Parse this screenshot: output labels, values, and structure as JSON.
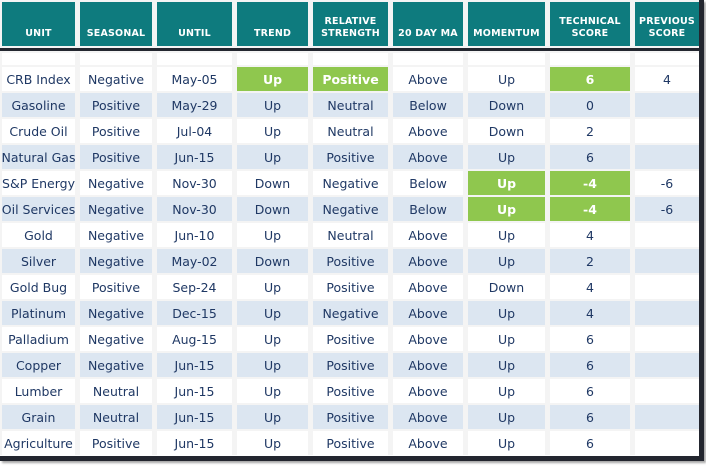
{
  "colors": {
    "header_bg": "#0E7B7E",
    "highlight_green": "#8FC74E",
    "row_alt": "#DCE6F1",
    "text": "#1F3864",
    "header_text": "#FFFFFF",
    "border_dark": "#23262F"
  },
  "table": {
    "columns": [
      {
        "key": "unit",
        "label": "UNIT"
      },
      {
        "key": "seasonal",
        "label": "SEASONAL"
      },
      {
        "key": "until",
        "label": "UNTIL"
      },
      {
        "key": "trend",
        "label": "TREND"
      },
      {
        "key": "relative_strength",
        "label": "RELATIVE STRENGTH"
      },
      {
        "key": "twenty_day_ma",
        "label": "20 DAY MA"
      },
      {
        "key": "momentum",
        "label": "MOMENTUM"
      },
      {
        "key": "technical_score",
        "label": "TECHNICAL SCORE"
      },
      {
        "key": "previous_score",
        "label": "PREVIOUS SCORE"
      }
    ],
    "rows": [
      {
        "unit": "CRB Index",
        "seasonal": "Negative",
        "until": "May-05",
        "trend": "Up",
        "relative_strength": "Positive",
        "twenty_day_ma": "Above",
        "momentum": "Up",
        "technical_score": "6",
        "previous_score": "4",
        "highlights": [
          "trend",
          "relative_strength",
          "technical_score"
        ]
      },
      {
        "unit": "Gasoline",
        "seasonal": "Positive",
        "until": "May-29",
        "trend": "Up",
        "relative_strength": "Neutral",
        "twenty_day_ma": "Below",
        "momentum": "Down",
        "technical_score": "0",
        "previous_score": "",
        "highlights": []
      },
      {
        "unit": "Crude Oil",
        "seasonal": "Positive",
        "until": "Jul-04",
        "trend": "Up",
        "relative_strength": "Neutral",
        "twenty_day_ma": "Above",
        "momentum": "Down",
        "technical_score": "2",
        "previous_score": "",
        "highlights": []
      },
      {
        "unit": "Natural Gas",
        "seasonal": "Positive",
        "until": "Jun-15",
        "trend": "Up",
        "relative_strength": "Positive",
        "twenty_day_ma": "Above",
        "momentum": "Up",
        "technical_score": "6",
        "previous_score": "",
        "highlights": []
      },
      {
        "unit": "S&P Energy",
        "seasonal": "Negative",
        "until": "Nov-30",
        "trend": "Down",
        "relative_strength": "Negative",
        "twenty_day_ma": "Below",
        "momentum": "Up",
        "technical_score": "-4",
        "previous_score": "-6",
        "highlights": [
          "momentum",
          "technical_score"
        ]
      },
      {
        "unit": "Oil Services",
        "seasonal": "Negative",
        "until": "Nov-30",
        "trend": "Down",
        "relative_strength": "Negative",
        "twenty_day_ma": "Below",
        "momentum": "Up",
        "technical_score": "-4",
        "previous_score": "-6",
        "highlights": [
          "momentum",
          "technical_score"
        ]
      },
      {
        "unit": "Gold",
        "seasonal": "Negative",
        "until": "Jun-10",
        "trend": "Up",
        "relative_strength": "Neutral",
        "twenty_day_ma": "Above",
        "momentum": "Up",
        "technical_score": "4",
        "previous_score": "",
        "highlights": []
      },
      {
        "unit": "Silver",
        "seasonal": "Negative",
        "until": "May-02",
        "trend": "Down",
        "relative_strength": "Positive",
        "twenty_day_ma": "Above",
        "momentum": "Up",
        "technical_score": "2",
        "previous_score": "",
        "highlights": []
      },
      {
        "unit": "Gold Bug",
        "seasonal": "Positive",
        "until": "Sep-24",
        "trend": "Up",
        "relative_strength": "Positive",
        "twenty_day_ma": "Above",
        "momentum": "Down",
        "technical_score": "4",
        "previous_score": "",
        "highlights": []
      },
      {
        "unit": "Platinum",
        "seasonal": "Negative",
        "until": "Dec-15",
        "trend": "Up",
        "relative_strength": "Negative",
        "twenty_day_ma": "Above",
        "momentum": "Up",
        "technical_score": "4",
        "previous_score": "",
        "highlights": []
      },
      {
        "unit": "Palladium",
        "seasonal": "Negative",
        "until": "Aug-15",
        "trend": "Up",
        "relative_strength": "Positive",
        "twenty_day_ma": "Above",
        "momentum": "Up",
        "technical_score": "6",
        "previous_score": "",
        "highlights": []
      },
      {
        "unit": "Copper",
        "seasonal": "Negative",
        "until": "Jun-15",
        "trend": "Up",
        "relative_strength": "Positive",
        "twenty_day_ma": "Above",
        "momentum": "Up",
        "technical_score": "6",
        "previous_score": "",
        "highlights": []
      },
      {
        "unit": "Lumber",
        "seasonal": "Neutral",
        "until": "Jun-15",
        "trend": "Up",
        "relative_strength": "Positive",
        "twenty_day_ma": "Above",
        "momentum": "Up",
        "technical_score": "6",
        "previous_score": "",
        "highlights": []
      },
      {
        "unit": "Grain",
        "seasonal": "Neutral",
        "until": "Jun-15",
        "trend": "Up",
        "relative_strength": "Positive",
        "twenty_day_ma": "Above",
        "momentum": "Up",
        "technical_score": "6",
        "previous_score": "",
        "highlights": []
      },
      {
        "unit": "Agriculture",
        "seasonal": "Positive",
        "until": "Jun-15",
        "trend": "Up",
        "relative_strength": "Positive",
        "twenty_day_ma": "Above",
        "momentum": "Up",
        "technical_score": "6",
        "previous_score": "",
        "highlights": []
      }
    ]
  }
}
